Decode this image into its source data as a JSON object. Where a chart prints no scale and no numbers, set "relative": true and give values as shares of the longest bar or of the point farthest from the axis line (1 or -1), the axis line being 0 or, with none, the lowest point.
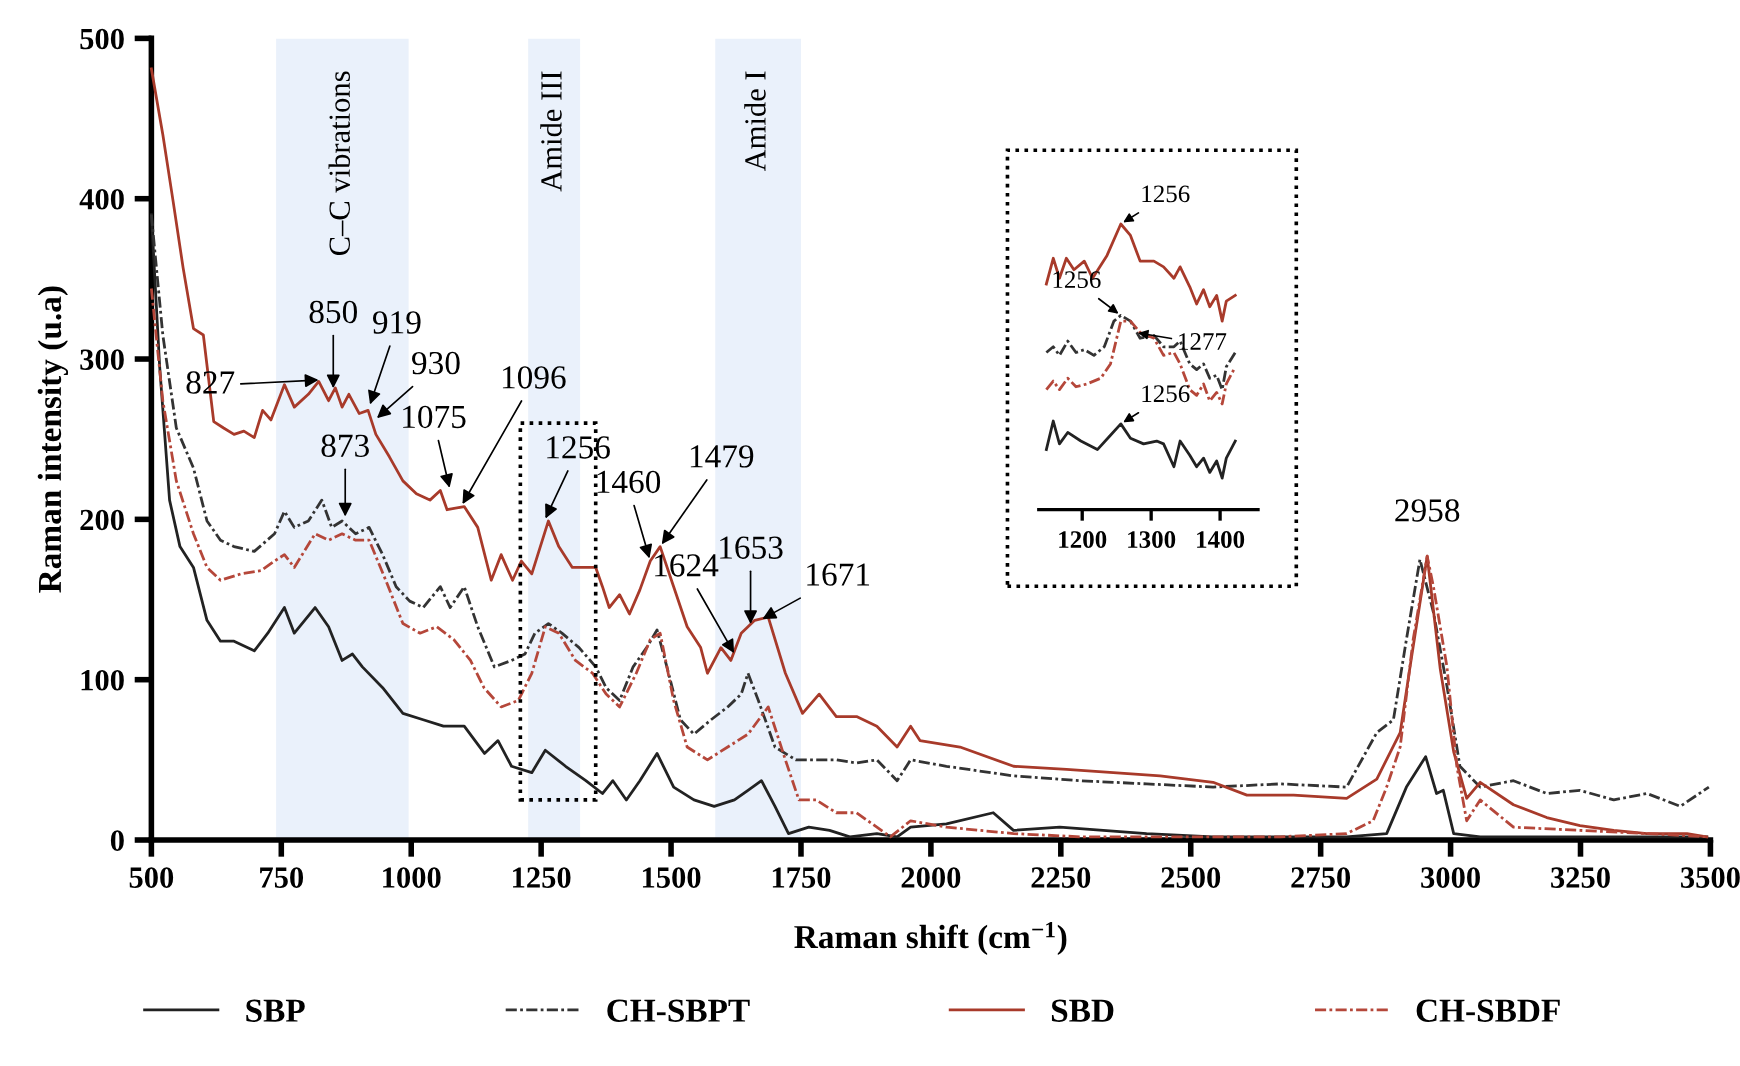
{
  "chart_data": [
    {
      "type": "line",
      "xlabel": "Raman shift (cm$^{−1}$)",
      "ylabel": "Raman intensity (u.a)",
      "xlim": [
        500,
        3500
      ],
      "xticks": [
        500,
        750,
        1000,
        1250,
        1500,
        1750,
        2000,
        2250,
        2500,
        2750,
        3000,
        3250,
        3500
      ],
      "ylim": [
        0,
        500
      ],
      "yticks": [
        0,
        100,
        200,
        300,
        400,
        500
      ],
      "grid": false,
      "legend": "bottom",
      "bands": [
        {
          "axis": "x",
          "from": 740,
          "to": 995,
          "label": "C–C vibrations",
          "color": "#eaf1fb"
        },
        {
          "axis": "x",
          "from": 1225,
          "to": 1325,
          "label": "Amide III",
          "color": "#eaf1fb"
        },
        {
          "axis": "x",
          "from": 1585,
          "to": 1750,
          "label": "Amide I",
          "color": "#eaf1fb"
        }
      ],
      "series": [
        {
          "name": "SBP",
          "color": "#222222",
          "line_style": "solid",
          "x": [
            500,
            516,
            535,
            555,
            581,
            607,
            633,
            659,
            698,
            724,
            756,
            775,
            815,
            841,
            867,
            887,
            906,
            945,
            984,
            1023,
            1062,
            1102,
            1141,
            1167,
            1193,
            1232,
            1258,
            1297,
            1336,
            1368,
            1388,
            1414,
            1440,
            1473,
            1505,
            1544,
            1583,
            1622,
            1648,
            1674,
            1700,
            1726,
            1765,
            1805,
            1844,
            1896,
            1935,
            1961,
            2030,
            2120,
            2159,
            2248,
            2415,
            2543,
            2672,
            2800,
            2877,
            2915,
            2952,
            2973,
            2986,
            3006,
            3057,
            3185,
            3493
          ],
          "values": [
            390,
            295,
            212,
            183,
            170,
            137,
            124,
            124,
            118,
            129,
            145,
            129,
            145,
            133,
            112,
            116,
            108,
            95,
            79,
            75,
            71,
            71,
            54,
            62,
            46,
            42,
            56,
            46,
            37,
            29,
            37,
            25,
            37,
            54,
            33,
            25,
            21,
            25,
            31,
            37,
            21,
            4,
            8,
            6,
            2,
            4,
            2,
            8,
            10,
            17,
            6,
            8,
            4,
            2,
            2,
            2,
            4,
            33,
            52,
            29,
            31,
            4,
            2,
            2,
            2
          ]
        },
        {
          "name": "CH-SBPT",
          "color": "#333333",
          "line_style": "dashed",
          "x": [
            500,
            522,
            548,
            581,
            607,
            633,
            659,
            698,
            737,
            756,
            775,
            802,
            828,
            847,
            867,
            893,
            919,
            945,
            971,
            997,
            1023,
            1056,
            1075,
            1102,
            1128,
            1160,
            1193,
            1219,
            1238,
            1264,
            1290,
            1323,
            1355,
            1375,
            1401,
            1427,
            1453,
            1473,
            1492,
            1518,
            1544,
            1577,
            1609,
            1635,
            1648,
            1668,
            1700,
            1740,
            1779,
            1818,
            1857,
            1896,
            1935,
            1961,
            2030,
            2159,
            2287,
            2415,
            2543,
            2672,
            2800,
            2858,
            2890,
            2915,
            2941,
            2967,
            2993,
            3018,
            3057,
            3121,
            3185,
            3249,
            3314,
            3378,
            3442,
            3497
          ],
          "values": [
            390,
            315,
            257,
            232,
            199,
            187,
            183,
            180,
            191,
            205,
            195,
            199,
            212,
            195,
            199,
            191,
            195,
            178,
            158,
            149,
            145,
            158,
            145,
            158,
            133,
            108,
            112,
            116,
            129,
            135,
            129,
            120,
            108,
            95,
            87,
            108,
            120,
            131,
            108,
            75,
            66,
            75,
            83,
            91,
            104,
            87,
            58,
            50,
            50,
            50,
            48,
            50,
            37,
            50,
            46,
            40,
            37,
            35,
            33,
            35,
            33,
            67,
            75,
            125,
            175,
            142,
            96,
            46,
            33,
            37,
            29,
            31,
            25,
            29,
            21,
            33
          ]
        },
        {
          "name": "SBD",
          "color": "#a83a2a",
          "line_style": "solid",
          "x": [
            500,
            522,
            542,
            561,
            581,
            600,
            620,
            639,
            659,
            678,
            698,
            714,
            730,
            756,
            775,
            802,
            822,
            841,
            854,
            867,
            880,
            900,
            917,
            932,
            958,
            984,
            1010,
            1036,
            1056,
            1069,
            1102,
            1128,
            1154,
            1173,
            1195,
            1212,
            1232,
            1264,
            1284,
            1310,
            1336,
            1355,
            1368,
            1381,
            1401,
            1420,
            1440,
            1460,
            1479,
            1505,
            1531,
            1557,
            1570,
            1596,
            1615,
            1635,
            1661,
            1687,
            1720,
            1753,
            1785,
            1818,
            1857,
            1896,
            1935,
            1961,
            1979,
            2056,
            2159,
            2261,
            2351,
            2441,
            2543,
            2608,
            2698,
            2800,
            2858,
            2903,
            2922,
            2955,
            2980,
            3006,
            3031,
            3057,
            3121,
            3185,
            3249,
            3314,
            3378,
            3455,
            3493
          ],
          "values": [
            481,
            440,
            398,
            357,
            319,
            315,
            261,
            257,
            253,
            255,
            251,
            268,
            262,
            284,
            270,
            278,
            286,
            274,
            282,
            270,
            278,
            266,
            268,
            253,
            239,
            224,
            216,
            212,
            218,
            206,
            208,
            195,
            162,
            178,
            162,
            174,
            166,
            199,
            183,
            170,
            170,
            170,
            158,
            145,
            153,
            141,
            156,
            174,
            183,
            158,
            133,
            120,
            104,
            120,
            112,
            129,
            137,
            139,
            104,
            79,
            91,
            77,
            77,
            71,
            58,
            71,
            62,
            58,
            46,
            44,
            42,
            40,
            36,
            28,
            28,
            26,
            38,
            67,
            108,
            177,
            107,
            55,
            26,
            36,
            22,
            14,
            9,
            6,
            4,
            4,
            2
          ]
        },
        {
          "name": "CH-SBDF",
          "color": "#b5473a",
          "line_style": "dashed",
          "x": [
            500,
            522,
            548,
            581,
            607,
            633,
            672,
            711,
            737,
            756,
            775,
            815,
            841,
            867,
            893,
            919,
            951,
            984,
            1017,
            1049,
            1082,
            1114,
            1140,
            1173,
            1206,
            1232,
            1258,
            1284,
            1316,
            1349,
            1375,
            1401,
            1433,
            1460,
            1479,
            1505,
            1531,
            1570,
            1609,
            1648,
            1687,
            1720,
            1746,
            1779,
            1818,
            1857,
            1896,
            1922,
            1961,
            2030,
            2159,
            2287,
            2415,
            2543,
            2672,
            2800,
            2851,
            2877,
            2903,
            2928,
            2955,
            2967,
            2993,
            3012,
            3031,
            3057,
            3121,
            3249,
            3378,
            3493
          ],
          "values": [
            344,
            274,
            224,
            191,
            170,
            162,
            166,
            168,
            174,
            178,
            170,
            191,
            187,
            191,
            187,
            187,
            162,
            135,
            129,
            133,
            125,
            112,
            95,
            83,
            87,
            104,
            133,
            129,
            112,
            104,
            91,
            83,
            104,
            125,
            129,
            87,
            58,
            50,
            58,
            66,
            83,
            50,
            25,
            25,
            17,
            17,
            8,
            2,
            12,
            8,
            4,
            2,
            2,
            2,
            2,
            4,
            12,
            33,
            58,
            125,
            177,
            158,
            108,
            46,
            12,
            25,
            8,
            6,
            4,
            2
          ]
        }
      ],
      "annotations": [
        {
          "text": "827",
          "x": 827,
          "y": 287
        },
        {
          "text": "850",
          "x": 850,
          "y": 280
        },
        {
          "text": "919",
          "x": 919,
          "y": 270
        },
        {
          "text": "930",
          "x": 930,
          "y": 262
        },
        {
          "text": "1075",
          "x": 1075,
          "y": 218
        },
        {
          "text": "1096",
          "x": 1096,
          "y": 208
        },
        {
          "text": "1256",
          "x": 1256,
          "y": 199
        },
        {
          "text": "1460",
          "x": 1460,
          "y": 174
        },
        {
          "text": "1479",
          "x": 1479,
          "y": 183
        },
        {
          "text": "1624",
          "x": 1624,
          "y": 115
        },
        {
          "text": "1653",
          "x": 1653,
          "y": 133
        },
        {
          "text": "1671",
          "x": 1671,
          "y": 137
        },
        {
          "text": "873",
          "x": 873,
          "y": 200
        },
        {
          "text": "2958",
          "x": 2955,
          "y": 177
        }
      ]
    },
    {
      "type": "line",
      "relative": true,
      "xlim": [
        1137,
        1455
      ],
      "xticks": [
        1200,
        1300,
        1400
      ],
      "tick_labels": "x",
      "grid": false,
      "series": [
        {
          "color": "#a83a2a",
          "line_style": "solid",
          "x": [
            1148,
            1158,
            1167,
            1177,
            1188,
            1203,
            1215,
            1236,
            1256,
            1270,
            1284,
            1304,
            1318,
            1333,
            1342,
            1356,
            1366,
            1376,
            1385,
            1395,
            1403,
            1409,
            1422
          ],
          "values": [
            0.79,
            0.88,
            0.81,
            0.88,
            0.84,
            0.87,
            0.81,
            0.89,
            1.0,
            0.96,
            0.87,
            0.87,
            0.85,
            0.81,
            0.85,
            0.78,
            0.72,
            0.77,
            0.71,
            0.75,
            0.66,
            0.73,
            0.75
          ]
        },
        {
          "color": "#333333",
          "line_style": "dashed",
          "x": [
            1148,
            1158,
            1167,
            1179,
            1191,
            1203,
            1217,
            1232,
            1246,
            1256,
            1270,
            1284,
            1304,
            1318,
            1333,
            1342,
            1356,
            1366,
            1376,
            1385,
            1395,
            1403,
            1409,
            1422
          ],
          "values": [
            0.55,
            0.57,
            0.54,
            0.59,
            0.55,
            0.56,
            0.54,
            0.57,
            0.66,
            0.68,
            0.66,
            0.6,
            0.61,
            0.57,
            0.57,
            0.59,
            0.51,
            0.49,
            0.51,
            0.46,
            0.47,
            0.42,
            0.5,
            0.55
          ]
        },
        {
          "color": "#b5473a",
          "line_style": "dashed",
          "x": [
            1148,
            1158,
            1167,
            1179,
            1191,
            1207,
            1227,
            1241,
            1256,
            1270,
            1284,
            1304,
            1318,
            1333,
            1342,
            1356,
            1366,
            1376,
            1385,
            1395,
            1403,
            1409,
            1422
          ],
          "values": [
            0.42,
            0.45,
            0.42,
            0.46,
            0.43,
            0.44,
            0.46,
            0.51,
            0.66,
            0.66,
            0.62,
            0.6,
            0.54,
            0.55,
            0.51,
            0.42,
            0.4,
            0.44,
            0.38,
            0.41,
            0.37,
            0.44,
            0.5
          ]
        },
        {
          "color": "#222222",
          "line_style": "solid",
          "x": [
            1148,
            1158,
            1167,
            1179,
            1198,
            1222,
            1241,
            1256,
            1270,
            1289,
            1308,
            1318,
            1333,
            1342,
            1356,
            1366,
            1376,
            1385,
            1395,
            1403,
            1409,
            1422
          ],
          "values": [
            0.21,
            0.31,
            0.23,
            0.27,
            0.24,
            0.21,
            0.26,
            0.3,
            0.25,
            0.23,
            0.24,
            0.23,
            0.15,
            0.24,
            0.19,
            0.15,
            0.18,
            0.13,
            0.17,
            0.11,
            0.18,
            0.24
          ]
        }
      ],
      "annotations": [
        {
          "text": "1256",
          "x": 1256,
          "y": 1.0
        },
        {
          "text": "1256",
          "x": 1256,
          "y": 0.68
        },
        {
          "text": "1277",
          "x": 1277,
          "y": 0.62
        },
        {
          "text": "1256",
          "x": 1256,
          "y": 0.3
        }
      ]
    }
  ]
}
